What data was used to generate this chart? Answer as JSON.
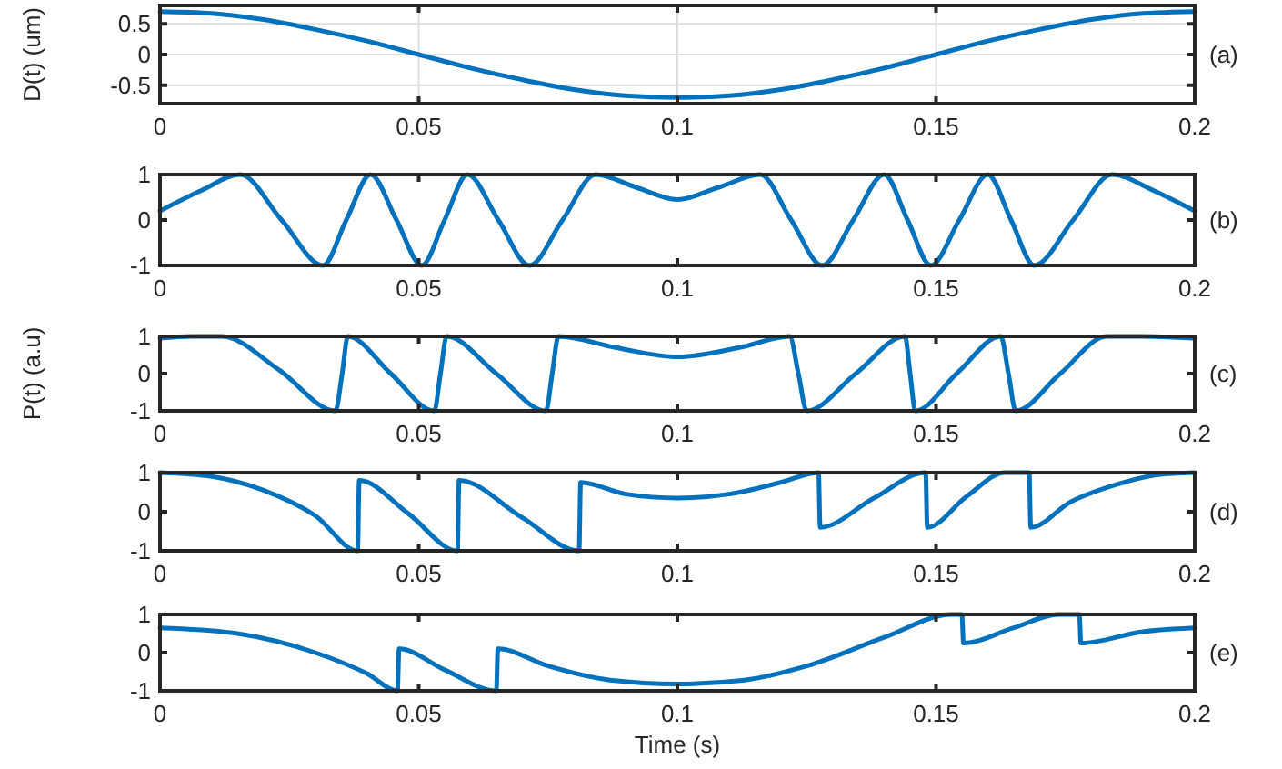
{
  "chart_data": [
    {
      "type": "line",
      "ylabel": "D(t) (um)",
      "annotations": [
        "(a)"
      ],
      "xlim": [
        0,
        0.2
      ],
      "xticks": [
        0,
        0.05,
        0.1,
        0.15,
        0.2
      ],
      "ylim": [
        -0.8,
        0.8
      ],
      "yticks": [
        -0.5,
        0,
        0.5
      ],
      "grid": true,
      "x": [
        0,
        0.01,
        0.02,
        0.03,
        0.04,
        0.05,
        0.06,
        0.07,
        0.08,
        0.09,
        0.1,
        0.11,
        0.12,
        0.13,
        0.14,
        0.15,
        0.16,
        0.17,
        0.18,
        0.19,
        0.2
      ],
      "series": [
        {
          "color": "#0072bd",
          "values": [
            0.7,
            0.67,
            0.57,
            0.41,
            0.22,
            0,
            -0.22,
            -0.41,
            -0.57,
            -0.67,
            -0.7,
            -0.67,
            -0.57,
            -0.41,
            -0.22,
            0,
            0.22,
            0.41,
            0.57,
            0.67,
            0.7
          ]
        }
      ]
    },
    {
      "type": "line",
      "annotations": [
        "(b)"
      ],
      "xlim": [
        0,
        0.2
      ],
      "xticks": [
        0,
        0.05,
        0.1,
        0.15,
        0.2
      ],
      "ylim": [
        -1,
        1
      ],
      "yticks": [
        -1,
        0,
        1
      ],
      "x": [
        0,
        0.008,
        0.0155,
        0.0235,
        0.0315,
        0.036,
        0.0407,
        0.0457,
        0.0506,
        0.055,
        0.0594,
        0.0654,
        0.0714,
        0.0778,
        0.0842,
        0.092,
        0.1,
        0.108,
        0.116,
        0.122,
        0.128,
        0.134,
        0.14,
        0.1445,
        0.149,
        0.1545,
        0.16,
        0.1645,
        0.169,
        0.1765,
        0.184,
        0.192,
        0.2
      ],
      "series": [
        {
          "color": "#0072bd",
          "values": [
            0.2,
            0.65,
            1,
            0,
            -1,
            0,
            1,
            0,
            -1,
            0,
            1,
            0,
            -1,
            0,
            1,
            0.72,
            0.45,
            0.72,
            1,
            0,
            -1,
            0,
            1,
            0,
            -1,
            0,
            1,
            0,
            -1,
            0,
            1,
            0.65,
            0.2
          ]
        }
      ]
    },
    {
      "type": "line",
      "ylabel": "P(t) (a.u)",
      "annotations": [
        "(c)"
      ],
      "xlim": [
        0,
        0.2
      ],
      "xticks": [
        0,
        0.05,
        0.1,
        0.15,
        0.2
      ],
      "ylim": [
        -1,
        1
      ],
      "yticks": [
        -1,
        0,
        1
      ],
      "x": [
        0,
        0.006,
        0.012,
        0.023,
        0.0339,
        0.0352,
        0.0363,
        0.0446,
        0.053,
        0.0542,
        0.0554,
        0.065,
        0.0746,
        0.0758,
        0.077,
        0.088,
        0.1,
        0.112,
        0.1217,
        0.1234,
        0.125,
        0.1345,
        0.144,
        0.145,
        0.146,
        0.154,
        0.1625,
        0.164,
        0.1654,
        0.174,
        0.183,
        0.19,
        0.2
      ],
      "series": [
        {
          "color": "#0072bd",
          "values": [
            0.95,
            1,
            1,
            0.1,
            -1,
            0,
            1,
            0,
            -1,
            0,
            1,
            0,
            -1,
            0,
            1,
            0.7,
            0.45,
            0.7,
            1,
            0,
            -1,
            0,
            1,
            0,
            -1,
            0,
            1,
            0,
            -1,
            0,
            1,
            1,
            0.95
          ]
        }
      ]
    },
    {
      "type": "line",
      "annotations": [
        "(d)"
      ],
      "xlim": [
        0,
        0.2
      ],
      "xticks": [
        0,
        0.05,
        0.1,
        0.15,
        0.2
      ],
      "ylim": [
        -1,
        1
      ],
      "yticks": [
        -1,
        0,
        1
      ],
      "x": [
        0,
        0.01,
        0.02,
        0.03,
        0.0382,
        0.0385,
        0.048,
        0.0575,
        0.0578,
        0.07,
        0.081,
        0.0813,
        0.09,
        0.1,
        0.11,
        0.12,
        0.1273,
        0.1276,
        0.138,
        0.148,
        0.1483,
        0.156,
        0.1633,
        0.168,
        0.1683,
        0.176,
        0.185,
        0.193,
        0.2
      ],
      "series": [
        {
          "color": "#0072bd",
          "values": [
            1,
            0.9,
            0.55,
            -0.1,
            -1,
            0.8,
            -0.05,
            -1,
            0.8,
            -0.15,
            -1,
            0.75,
            0.45,
            0.35,
            0.45,
            0.75,
            1,
            -0.4,
            0.35,
            1,
            -0.4,
            0.4,
            1,
            1,
            -0.4,
            0.25,
            0.7,
            0.95,
            1
          ]
        }
      ]
    },
    {
      "type": "line",
      "xlabel": "Time (s)",
      "annotations": [
        "(e)"
      ],
      "xlim": [
        0,
        0.2
      ],
      "xticks": [
        0,
        0.05,
        0.1,
        0.15,
        0.2
      ],
      "ylim": [
        -1,
        1
      ],
      "yticks": [
        -1,
        0,
        1
      ],
      "x": [
        0,
        0.015,
        0.03,
        0.04,
        0.0459,
        0.0462,
        0.055,
        0.065,
        0.0653,
        0.075,
        0.087,
        0.1,
        0.113,
        0.125,
        0.14,
        0.153,
        0.155,
        0.1553,
        0.165,
        0.1737,
        0.1777,
        0.178,
        0.19,
        0.2
      ],
      "series": [
        {
          "color": "#0072bd",
          "values": [
            0.65,
            0.5,
            0,
            -0.55,
            -1,
            0.1,
            -0.45,
            -1,
            0.1,
            -0.35,
            -0.72,
            -0.82,
            -0.72,
            -0.35,
            0.4,
            1,
            1,
            0.25,
            0.65,
            1,
            1,
            0.25,
            0.55,
            0.65
          ]
        }
      ]
    }
  ]
}
